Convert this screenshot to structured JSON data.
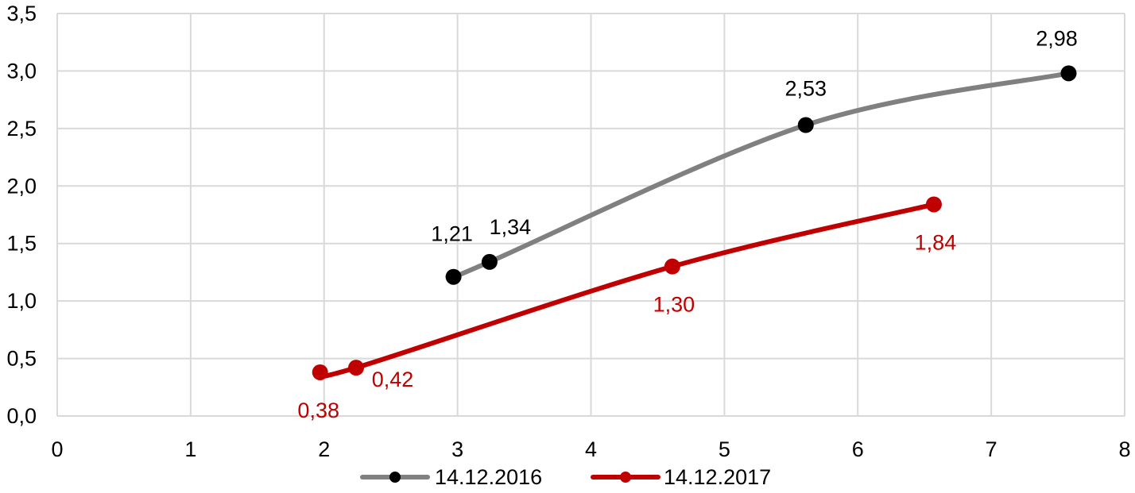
{
  "chart_data": {
    "type": "line",
    "xlim": [
      0,
      8
    ],
    "ylim": [
      0,
      3.5
    ],
    "x_ticks": [
      "0",
      "1",
      "2",
      "3",
      "4",
      "5",
      "6",
      "7",
      "8"
    ],
    "y_ticks": [
      "0,0",
      "0,5",
      "1,0",
      "1,5",
      "2,0",
      "2,5",
      "3,0",
      "3,5"
    ],
    "grid": true,
    "legend_position": "bottom",
    "smooth": true,
    "series": [
      {
        "name": "14.12.2016",
        "color": "#808080",
        "marker_color": "#000000",
        "label_color": "#000000",
        "points": [
          {
            "x": 2.97,
            "y": 1.21,
            "label": "1,21"
          },
          {
            "x": 3.24,
            "y": 1.34,
            "label": "1,34"
          },
          {
            "x": 5.61,
            "y": 2.53,
            "label": "2,53"
          },
          {
            "x": 7.58,
            "y": 2.98,
            "label": "2,98"
          }
        ]
      },
      {
        "name": "14.12.2017",
        "color": "#c00000",
        "marker_color": "#c00000",
        "label_color": "#c00000",
        "points": [
          {
            "x": 1.97,
            "y": 0.38,
            "label": "0,38"
          },
          {
            "x": 2.24,
            "y": 0.42,
            "label": "0,42"
          },
          {
            "x": 4.61,
            "y": 1.3,
            "label": "1,30"
          },
          {
            "x": 6.57,
            "y": 1.84,
            "label": "1,84"
          }
        ]
      }
    ]
  }
}
